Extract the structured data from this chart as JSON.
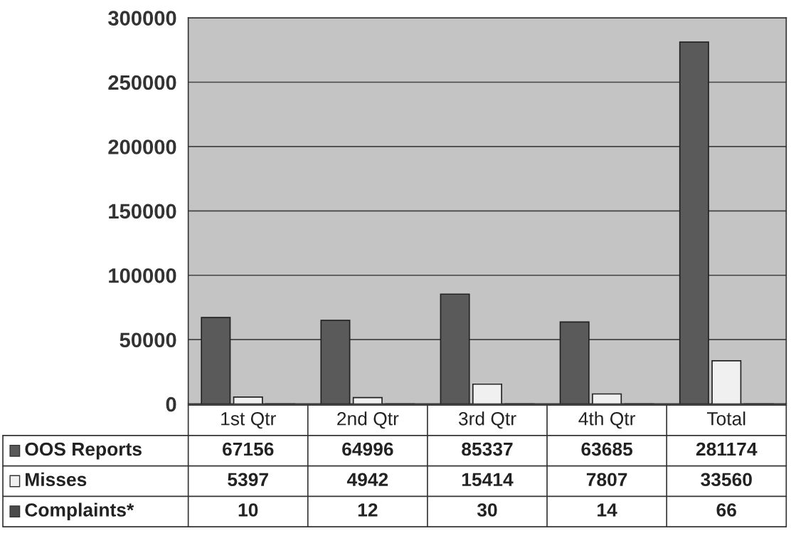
{
  "chart_data": {
    "type": "bar",
    "categories": [
      "1st Qtr",
      "2nd Qtr",
      "3rd Qtr",
      "4th Qtr",
      "Total"
    ],
    "series": [
      {
        "name": "OOS Reports",
        "color": "#5a5a5a",
        "values": [
          67156,
          64996,
          85337,
          63685,
          281174
        ]
      },
      {
        "name": "Misses",
        "color": "#f0f0f0",
        "values": [
          5397,
          4942,
          15414,
          7807,
          33560
        ]
      },
      {
        "name": "Complaints*",
        "color": "#4a4a4a",
        "values": [
          10,
          12,
          30,
          14,
          66
        ]
      }
    ],
    "ylim": [
      0,
      300000
    ],
    "yticks": [
      0,
      50000,
      100000,
      150000,
      200000,
      250000,
      300000
    ],
    "grid": "y",
    "data_labels": true,
    "legend": "bottom"
  }
}
